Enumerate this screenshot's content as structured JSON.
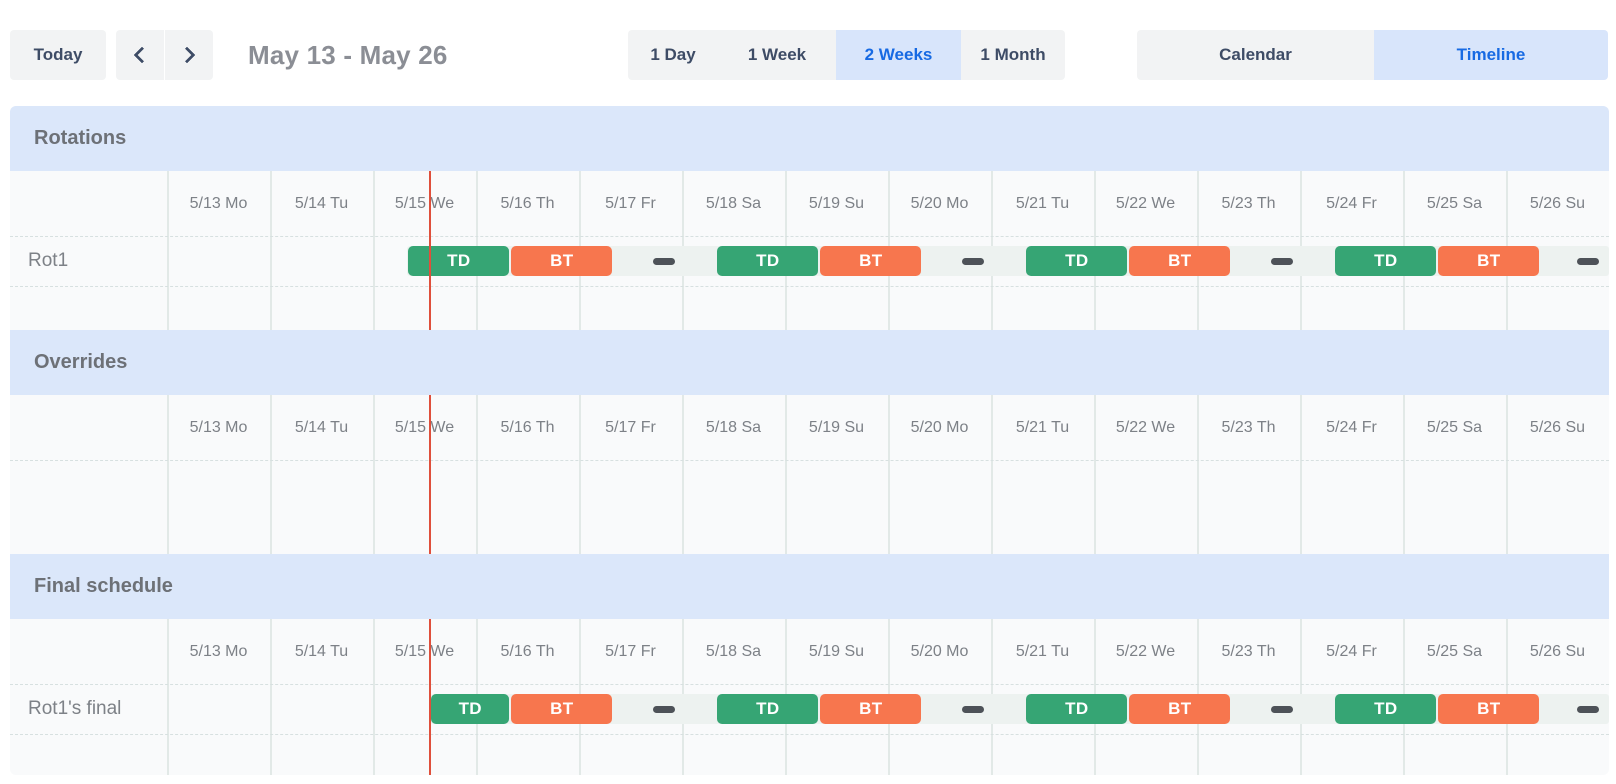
{
  "toolbar": {
    "today_label": "Today",
    "prev_icon": "chevron-left",
    "next_icon": "chevron-right",
    "date_range": "May 13 - May 26",
    "view_options": [
      {
        "label": "1 Day",
        "active": false
      },
      {
        "label": "1 Week",
        "active": false
      },
      {
        "label": "2 Weeks",
        "active": true
      },
      {
        "label": "1 Month",
        "active": false
      }
    ],
    "mode_options": [
      {
        "label": "Calendar",
        "active": false
      },
      {
        "label": "Timeline",
        "active": true
      }
    ]
  },
  "colors": {
    "accent_blue": "#176ae3",
    "active_bg": "#d8e5fb",
    "header_bg": "#dbe7fa",
    "button_bg": "#f2f3f4",
    "navy": "#3e4c66",
    "muted_text": "#7d8187",
    "title_text": "#8b8e95",
    "section_title_text": "#6d7177",
    "grid_bg": "#f9fafb",
    "grid_line": "#e2e9e7",
    "dashed_line": "#d7e0e0",
    "track": "#edf2f0",
    "td_green": "#36a574",
    "bt_orange": "#f7764e",
    "gap_dash": "#4d5258",
    "now_line": "#df4f3b"
  },
  "timeline": {
    "day_headers": [
      "5/13 Mo",
      "5/14 Tu",
      "5/15 We",
      "5/16 Th",
      "5/17 Fr",
      "5/18 Sa",
      "5/19 Su",
      "5/20 Mo",
      "5/21 Tu",
      "5/22 We",
      "5/23 Th",
      "5/24 Fr",
      "5/25 Sa",
      "5/26 Su"
    ],
    "now_day": 2.555,
    "shift_types": {
      "td": {
        "label": "TD",
        "color_key": "td_green"
      },
      "bt": {
        "label": "BT",
        "color_key": "bt_orange"
      }
    },
    "sections": [
      {
        "title": "Rotations",
        "rows": [
          {
            "label": "Rot1",
            "track": {
              "start": 2.333,
              "end": 14
            },
            "bars": [
              {
                "type": "td",
                "start": 2.333,
                "end": 3.333
              },
              {
                "type": "bt",
                "start": 3.333,
                "end": 4.333
              },
              {
                "type": "td",
                "start": 5.333,
                "end": 6.333
              },
              {
                "type": "bt",
                "start": 6.333,
                "end": 7.333
              },
              {
                "type": "td",
                "start": 8.333,
                "end": 9.333
              },
              {
                "type": "bt",
                "start": 9.333,
                "end": 10.333
              },
              {
                "type": "td",
                "start": 11.333,
                "end": 12.333
              },
              {
                "type": "bt",
                "start": 12.333,
                "end": 13.333
              }
            ],
            "gap_markers": [
              4.83,
              7.83,
              10.83,
              13.8
            ]
          }
        ]
      },
      {
        "title": "Overrides",
        "rows": []
      },
      {
        "title": "Final schedule",
        "rows": [
          {
            "label": "Rot1's final",
            "track": {
              "start": 2.555,
              "end": 14
            },
            "bars": [
              {
                "type": "td",
                "start": 2.555,
                "end": 3.333
              },
              {
                "type": "bt",
                "start": 3.333,
                "end": 4.333
              },
              {
                "type": "td",
                "start": 5.333,
                "end": 6.333
              },
              {
                "type": "bt",
                "start": 6.333,
                "end": 7.333
              },
              {
                "type": "td",
                "start": 8.333,
                "end": 9.333
              },
              {
                "type": "bt",
                "start": 9.333,
                "end": 10.333
              },
              {
                "type": "td",
                "start": 11.333,
                "end": 12.333
              },
              {
                "type": "bt",
                "start": 12.333,
                "end": 13.333
              }
            ],
            "gap_markers": [
              4.83,
              7.83,
              10.83,
              13.8
            ]
          }
        ]
      }
    ]
  }
}
